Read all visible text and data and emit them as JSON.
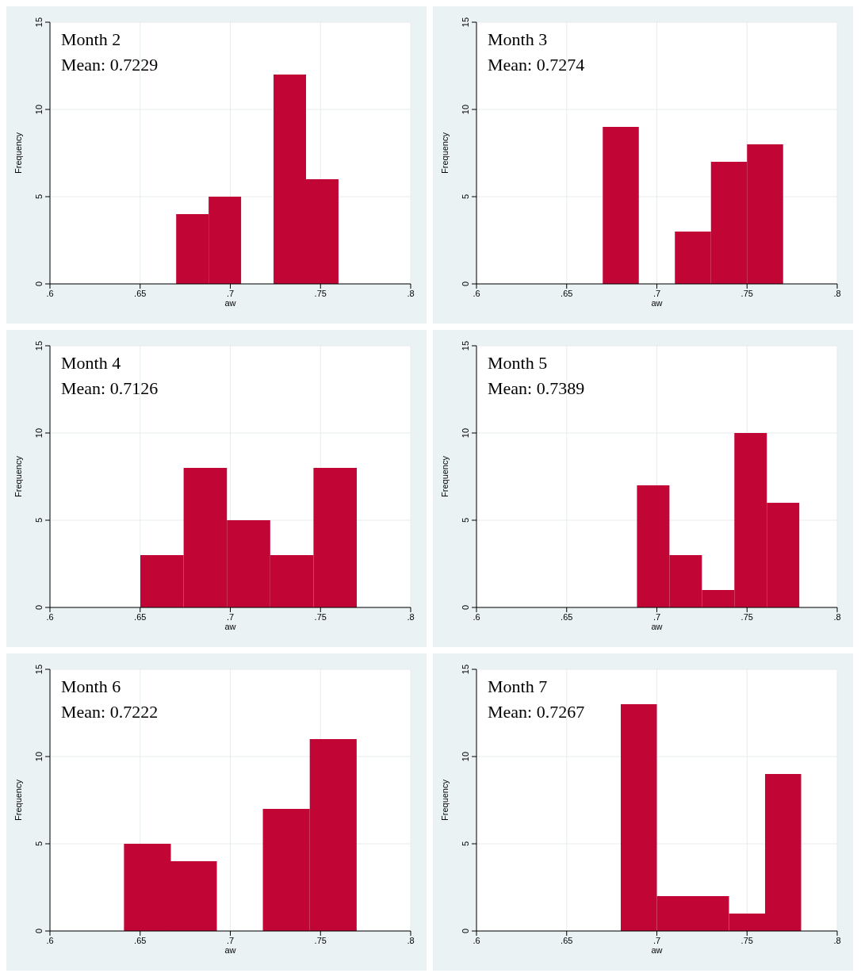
{
  "chart_data": [
    {
      "type": "histogram",
      "title": "Month 2",
      "annotations": [
        "Mean: 0.7229"
      ],
      "xlabel": "aw",
      "ylabel": "Frequency",
      "color": "#c10534",
      "bins": [
        0.67,
        0.688,
        0.706,
        0.724,
        0.742,
        0.76
      ],
      "values": [
        4,
        5,
        0,
        12,
        6
      ],
      "xlim": [
        0.6,
        0.8
      ],
      "xticks": [
        {
          "value": 0.6,
          "label": ".6"
        },
        {
          "value": 0.65,
          "label": ".65"
        },
        {
          "value": 0.7,
          "label": ".7"
        },
        {
          "value": 0.75,
          "label": ".75"
        },
        {
          "value": 0.8,
          "label": ".8"
        }
      ],
      "ylim": [
        0,
        15
      ],
      "yticks": [
        0,
        5,
        10,
        15
      ],
      "grid": true
    },
    {
      "type": "histogram",
      "title": "Month 3",
      "annotations": [
        "Mean: 0.7274"
      ],
      "xlabel": "aw",
      "ylabel": "Frequency",
      "color": "#c10534",
      "bins": [
        0.67,
        0.69,
        0.71,
        0.73,
        0.75,
        0.77
      ],
      "values": [
        9,
        0,
        3,
        7,
        8
      ],
      "xlim": [
        0.6,
        0.8
      ],
      "xticks": [
        {
          "value": 0.6,
          "label": ".6"
        },
        {
          "value": 0.65,
          "label": ".65"
        },
        {
          "value": 0.7,
          "label": ".7"
        },
        {
          "value": 0.75,
          "label": ".75"
        },
        {
          "value": 0.8,
          "label": ".8"
        }
      ],
      "ylim": [
        0,
        15
      ],
      "yticks": [
        0,
        5,
        10,
        15
      ],
      "grid": true
    },
    {
      "type": "histogram",
      "title": "Month 4",
      "annotations": [
        "Mean: 0.7126"
      ],
      "xlabel": "aw",
      "ylabel": "Frequency",
      "color": "#c10534",
      "bins": [
        0.65,
        0.674,
        0.698,
        0.722,
        0.746,
        0.77
      ],
      "values": [
        3,
        8,
        5,
        3,
        8
      ],
      "xlim": [
        0.6,
        0.8
      ],
      "xticks": [
        {
          "value": 0.6,
          "label": ".6"
        },
        {
          "value": 0.65,
          "label": ".65"
        },
        {
          "value": 0.7,
          "label": ".7"
        },
        {
          "value": 0.75,
          "label": ".75"
        },
        {
          "value": 0.8,
          "label": ".8"
        }
      ],
      "ylim": [
        0,
        15
      ],
      "yticks": [
        0,
        5,
        10,
        15
      ],
      "grid": true
    },
    {
      "type": "histogram",
      "title": "Month 5",
      "annotations": [
        "Mean: 0.7389"
      ],
      "xlabel": "aw",
      "ylabel": "Frequency",
      "color": "#c10534",
      "bins": [
        0.689,
        0.707,
        0.725,
        0.743,
        0.761,
        0.779
      ],
      "values": [
        7,
        3,
        1,
        10,
        6
      ],
      "xlim": [
        0.6,
        0.8
      ],
      "xticks": [
        {
          "value": 0.6,
          "label": ".6"
        },
        {
          "value": 0.65,
          "label": ".65"
        },
        {
          "value": 0.7,
          "label": ".7"
        },
        {
          "value": 0.75,
          "label": ".75"
        },
        {
          "value": 0.8,
          "label": ".8"
        }
      ],
      "ylim": [
        0,
        15
      ],
      "yticks": [
        0,
        5,
        10,
        15
      ],
      "grid": true
    },
    {
      "type": "histogram",
      "title": "Month 6",
      "annotations": [
        "Mean: 0.7222"
      ],
      "xlabel": "aw",
      "ylabel": "Frequency",
      "color": "#c10534",
      "bins": [
        0.641,
        0.667,
        0.692,
        0.718,
        0.744,
        0.77
      ],
      "values": [
        5,
        4,
        0,
        7,
        11
      ],
      "xlim": [
        0.6,
        0.8
      ],
      "xticks": [
        {
          "value": 0.6,
          "label": ".6"
        },
        {
          "value": 0.65,
          "label": ".65"
        },
        {
          "value": 0.7,
          "label": ".7"
        },
        {
          "value": 0.75,
          "label": ".75"
        },
        {
          "value": 0.8,
          "label": ".8"
        }
      ],
      "ylim": [
        0,
        15
      ],
      "yticks": [
        0,
        5,
        10,
        15
      ],
      "grid": true
    },
    {
      "type": "histogram",
      "title": "Month 7",
      "annotations": [
        "Mean: 0.7267"
      ],
      "xlabel": "aw",
      "ylabel": "Frequency",
      "color": "#c10534",
      "bins": [
        0.68,
        0.7,
        0.72,
        0.74,
        0.76,
        0.78
      ],
      "values": [
        13,
        2,
        2,
        1,
        9
      ],
      "xlim": [
        0.6,
        0.8
      ],
      "xticks": [
        {
          "value": 0.6,
          "label": ".6"
        },
        {
          "value": 0.65,
          "label": ".65"
        },
        {
          "value": 0.7,
          "label": ".7"
        },
        {
          "value": 0.75,
          "label": ".75"
        },
        {
          "value": 0.8,
          "label": ".8"
        }
      ],
      "ylim": [
        0,
        15
      ],
      "yticks": [
        0,
        5,
        10,
        15
      ],
      "grid": true
    }
  ]
}
